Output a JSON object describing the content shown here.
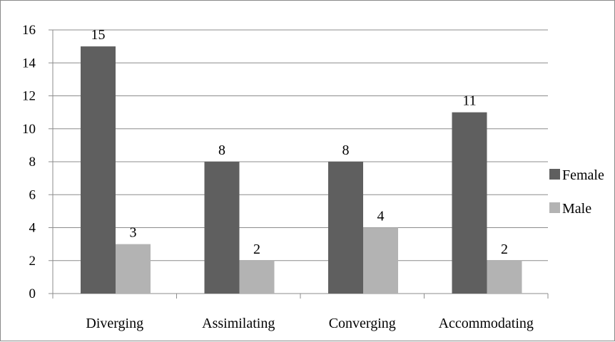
{
  "chart_data": {
    "type": "bar",
    "categories": [
      "Diverging",
      "Assimilating",
      "Converging",
      "Accommodating"
    ],
    "series": [
      {
        "name": "Female",
        "values": [
          15,
          8,
          8,
          11
        ],
        "color": "#5f5f5f"
      },
      {
        "name": "Male",
        "values": [
          3,
          2,
          4,
          2
        ],
        "color": "#b3b3b3"
      }
    ],
    "ylim": [
      0,
      16
    ],
    "yticks": [
      0,
      2,
      4,
      6,
      8,
      10,
      12,
      14,
      16
    ],
    "grid": true,
    "legend_position": "right",
    "data_labels": true
  }
}
